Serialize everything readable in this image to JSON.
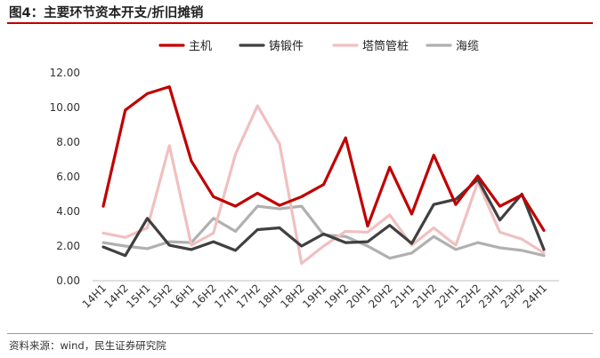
{
  "header": {
    "title": "图4：主要环节资本开支/折旧摊销"
  },
  "footer": {
    "source": "资料来源：wind，民生证券研究院"
  },
  "colors": {
    "accent_rule": "#c00000",
    "axis": "#bfbfbf"
  },
  "chart_data": {
    "type": "line",
    "title": "主要环节资本开支/折旧摊销",
    "xlabel": "",
    "ylabel": "",
    "ylim": [
      0,
      12
    ],
    "yticks": [
      "0.00",
      "2.00",
      "4.00",
      "6.00",
      "8.00",
      "10.00",
      "12.00"
    ],
    "grid": false,
    "legend_position": "top",
    "categories": [
      "14H1",
      "14H2",
      "15H1",
      "15H2",
      "16H1",
      "16H2",
      "17H1",
      "17H2",
      "18H1",
      "18H2",
      "19H1",
      "19H2",
      "20H1",
      "20H2",
      "21H1",
      "21H2",
      "22H1",
      "22H2",
      "23H1",
      "23H2",
      "24H1"
    ],
    "series": [
      {
        "name": "主机",
        "color": "#c00000",
        "values": [
          4.3,
          9.85,
          10.8,
          11.2,
          6.9,
          4.85,
          4.3,
          5.05,
          4.35,
          4.85,
          5.55,
          8.25,
          3.15,
          6.55,
          3.85,
          7.25,
          4.4,
          6.05,
          4.3,
          4.95,
          2.9
        ]
      },
      {
        "name": "铸锻件",
        "color": "#404040",
        "values": [
          1.95,
          1.45,
          3.6,
          2.05,
          1.8,
          2.25,
          1.75,
          2.95,
          3.05,
          2.0,
          2.7,
          2.2,
          2.25,
          3.2,
          2.15,
          4.4,
          4.7,
          5.85,
          3.5,
          5.0,
          1.8
        ]
      },
      {
        "name": "塔筒管桩",
        "color": "#f0c0c0",
        "values": [
          2.75,
          2.5,
          3.05,
          7.8,
          2.05,
          2.75,
          7.3,
          10.1,
          7.9,
          1.0,
          2.0,
          2.85,
          2.8,
          3.8,
          2.05,
          3.05,
          2.05,
          5.7,
          2.8,
          2.4,
          1.6
        ]
      },
      {
        "name": "海缆",
        "color": "#b0b0b0",
        "values": [
          2.2,
          2.0,
          1.85,
          2.25,
          2.2,
          3.6,
          2.85,
          4.3,
          4.15,
          4.3,
          2.65,
          2.55,
          2.0,
          1.3,
          1.6,
          2.55,
          1.8,
          2.2,
          1.9,
          1.75,
          1.45
        ]
      }
    ]
  }
}
